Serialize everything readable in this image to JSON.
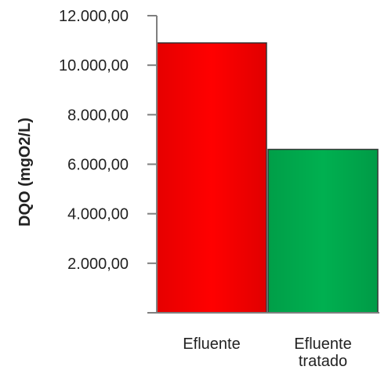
{
  "chart_data": {
    "type": "bar",
    "categories": [
      "Efluente",
      "Efluente tratado"
    ],
    "category_label_lines": [
      [
        "Efluente"
      ],
      [
        "Efluente",
        "tratado"
      ]
    ],
    "values": [
      10900,
      6600
    ],
    "bar_colors": [
      "#ff0000",
      "#00b050"
    ],
    "title": "",
    "xlabel": "",
    "ylabel": "DQO (mgO2/L)",
    "ylim": [
      0,
      12000
    ],
    "yticks": [
      2000,
      4000,
      6000,
      8000,
      10000,
      12000
    ],
    "ytick_labels": [
      "2.000,00",
      "4.000,00",
      "6.000,00",
      "8.000,00",
      "10.000,00",
      "12.000,00"
    ],
    "grid": false,
    "legend": "none"
  }
}
